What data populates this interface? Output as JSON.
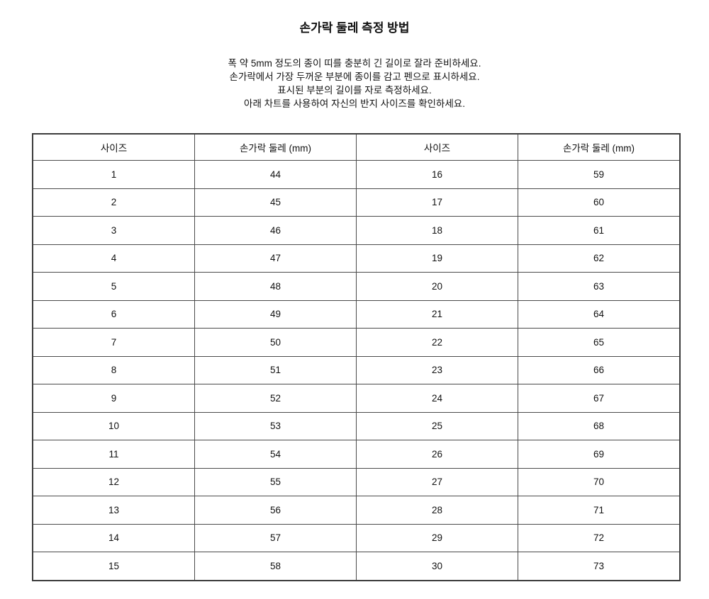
{
  "title": "손가락 둘레 측정 방법",
  "instructions": [
    "폭 약 5mm 정도의 종이 띠를 충분히 긴 길이로 잘라 준비하세요.",
    "손가락에서 가장 두꺼운 부분에 종이를 감고 펜으로 표시하세요.",
    "표시된 부분의 길이를 자로 측정하세요.",
    "아래 차트를 사용하여 자신의 반지 사이즈를 확인하세요."
  ],
  "table": {
    "columns": [
      "사이즈",
      "손가락 둘레 (mm)",
      "사이즈",
      "손가락 둘레 (mm)"
    ],
    "rows": [
      [
        1,
        44,
        16,
        59
      ],
      [
        2,
        45,
        17,
        60
      ],
      [
        3,
        46,
        18,
        61
      ],
      [
        4,
        47,
        19,
        62
      ],
      [
        5,
        48,
        20,
        63
      ],
      [
        6,
        49,
        21,
        64
      ],
      [
        7,
        50,
        22,
        65
      ],
      [
        8,
        51,
        23,
        66
      ],
      [
        9,
        52,
        24,
        67
      ],
      [
        10,
        53,
        25,
        68
      ],
      [
        11,
        54,
        26,
        69
      ],
      [
        12,
        55,
        27,
        70
      ],
      [
        13,
        56,
        28,
        71
      ],
      [
        14,
        57,
        29,
        72
      ],
      [
        15,
        58,
        30,
        73
      ]
    ]
  },
  "colors": {
    "background": "#ffffff",
    "text": "#111111",
    "border_inner": "#4a4a4a",
    "border_outer": "#3c3c3c"
  }
}
